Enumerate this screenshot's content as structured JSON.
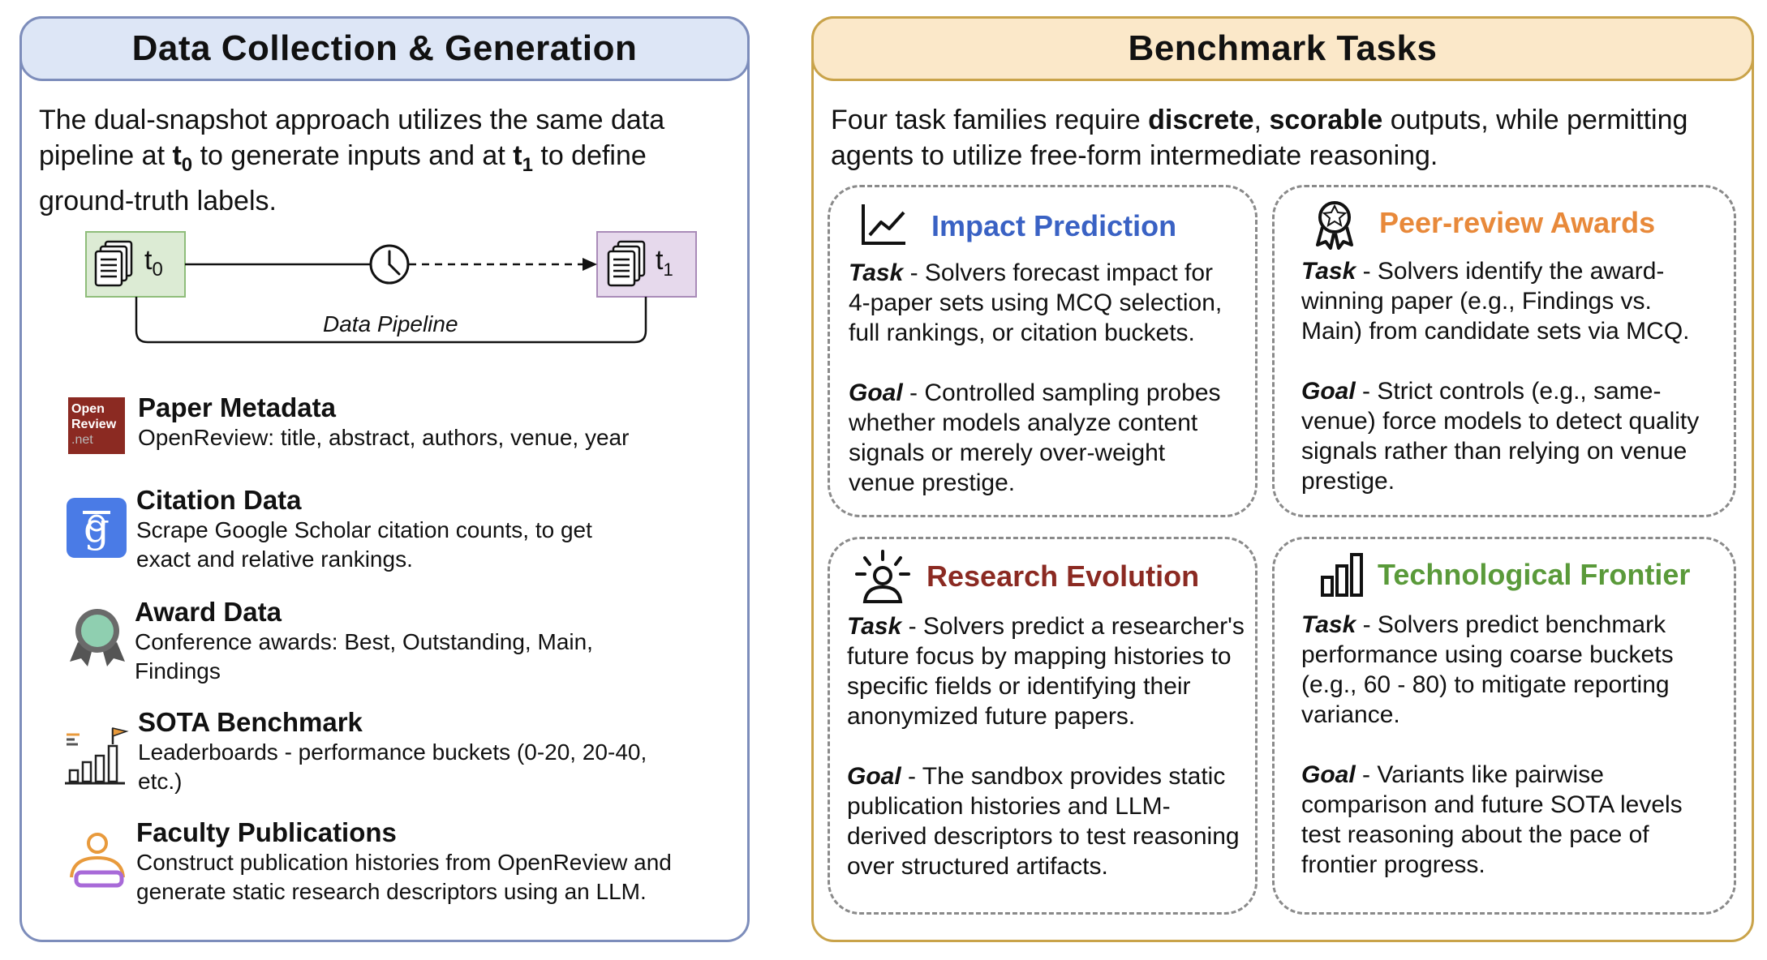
{
  "left": {
    "header": "Data Collection & Generation",
    "intro": {
      "line1": "The dual-snapshot approach utilizes the same data",
      "line2_a": "pipeline at ",
      "t0_main": "t",
      "t0_sub": "0",
      "line2_b": " to generate inputs and at ",
      "t1_main": "t",
      "t1_sub": "1",
      "line2_c": " to define",
      "line3": "ground-truth labels."
    },
    "snapshot_t0": "t",
    "snapshot_t0_sub": "0",
    "snapshot_t1": "t",
    "snapshot_t1_sub": "1",
    "pipeline_label": "Data Pipeline",
    "openreview_logo": [
      "Open",
      "Review",
      ".net"
    ],
    "sources": [
      {
        "title": "Paper Metadata",
        "desc": [
          "OpenReview: title, abstract, authors, venue, year"
        ],
        "icon": "openreview-logo"
      },
      {
        "title": "Citation Data",
        "desc": [
          "Scrape Google Scholar citation counts, to get",
          "exact and relative rankings."
        ],
        "icon": "google-scholar-icon"
      },
      {
        "title": "Award Data",
        "desc": [
          "Conference awards: Best, Outstanding, Main,",
          "Findings"
        ],
        "icon": "award-medal-icon"
      },
      {
        "title": "SOTA Benchmark",
        "desc": [
          "Leaderboards - performance buckets (0-20, 20-40,",
          "etc.)"
        ],
        "icon": "leaderboard-icon"
      },
      {
        "title": "Faculty Publications",
        "desc": [
          "Construct publication histories from OpenReview and",
          "generate static research descriptors using an LLM."
        ],
        "icon": "researcher-icon"
      }
    ]
  },
  "right": {
    "header": "Benchmark Tasks",
    "intro": {
      "a": "Four task families require ",
      "b": "discrete",
      "c": ", ",
      "d": "scorable",
      "e": " outputs, while permitting",
      "f": "agents to utilize free-form intermediate reasoning."
    },
    "tasks": [
      {
        "title": "Impact Prediction",
        "color": "#3a62c4",
        "icon": "line-chart-icon",
        "task_label": "Task",
        "task_lines": [
          " - Solvers forecast impact for",
          "4-paper sets using MCQ selection,",
          "full rankings, or citation buckets."
        ],
        "goal_label": "Goal",
        "goal_lines": [
          " - Controlled sampling probes",
          "whether models analyze content",
          "signals or merely over-weight",
          "venue prestige."
        ]
      },
      {
        "title": "Peer-review Awards",
        "color": "#e8893a",
        "icon": "award-ribbon-icon",
        "task_label": "Task",
        "task_lines": [
          " - Solvers identify the award-",
          "winning paper (e.g., Findings vs.",
          "Main) from candidate sets via MCQ."
        ],
        "goal_label": "Goal",
        "goal_lines": [
          " - Strict controls (e.g., same-",
          "venue) force models to detect quality",
          "signals rather than relying on venue",
          "prestige."
        ]
      },
      {
        "title": "Research Evolution",
        "color": "#8b2a22",
        "icon": "researcher-idea-icon",
        "task_label": "Task",
        "task_lines": [
          " - Solvers predict a researcher's",
          "future focus by mapping histories to",
          "specific fields or identifying their",
          "anonymized future papers."
        ],
        "goal_label": "Goal",
        "goal_lines": [
          " - The sandbox provides static",
          "publication histories and LLM-",
          "derived descriptors to test reasoning",
          "over structured artifacts."
        ]
      },
      {
        "title": "Technological Frontier",
        "color": "#5a9a3a",
        "icon": "bar-chart-icon",
        "task_label": "Task",
        "task_lines": [
          " - Solvers predict benchmark",
          "performance using coarse buckets",
          "(e.g., 60 - 80) to mitigate reporting",
          "variance."
        ],
        "goal_label": "Goal",
        "goal_lines": [
          " - Variants like pairwise",
          "comparison and future SOTA levels",
          "test reasoning about the pace of",
          "frontier progress."
        ]
      }
    ]
  }
}
